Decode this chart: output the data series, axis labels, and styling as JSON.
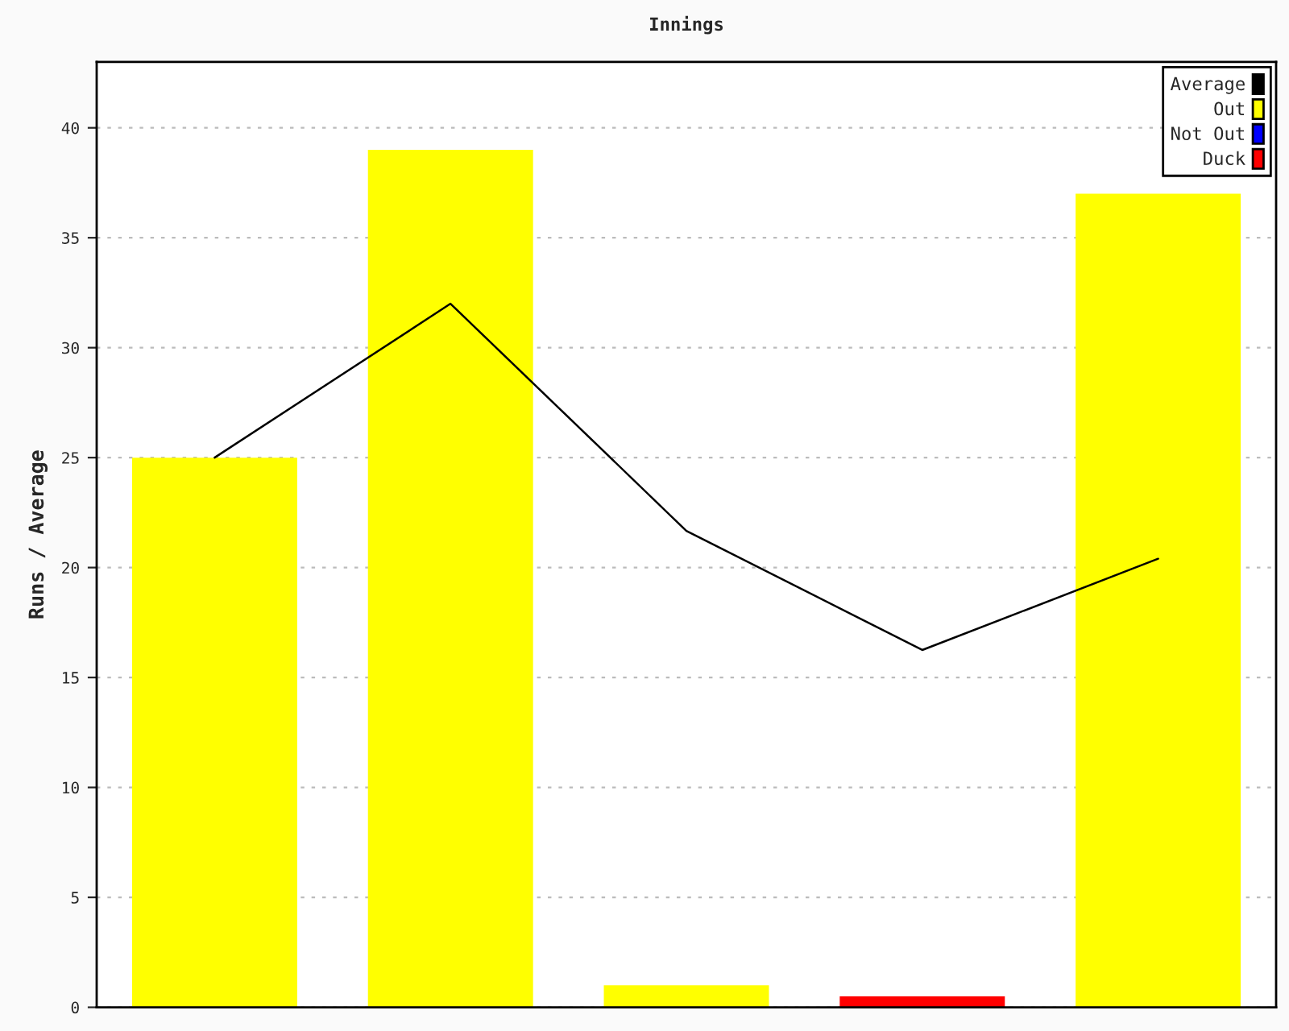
{
  "chart_data": {
    "type": "bar",
    "title": "Innings",
    "ylabel": "Runs / Average",
    "categories": [
      null,
      null,
      null,
      null,
      null
    ],
    "series": [
      {
        "name": "Average",
        "type": "line",
        "color": "#000000",
        "values": [
          25,
          32,
          21.67,
          16.25,
          20.4
        ]
      },
      {
        "name": "Out",
        "color": "#ffff00",
        "values": [
          25,
          39,
          1,
          null,
          37
        ]
      },
      {
        "name": "Not Out",
        "color": "#0000ff",
        "values": [
          null,
          null,
          null,
          null,
          null
        ]
      },
      {
        "name": "Duck",
        "color": "#ff0000",
        "values": [
          null,
          null,
          null,
          0.5,
          null
        ]
      }
    ],
    "ylim": [
      0,
      43
    ],
    "yticks": [
      0,
      5,
      10,
      15,
      20,
      25,
      30,
      35,
      40
    ],
    "grid": "y",
    "legend": "top right"
  }
}
